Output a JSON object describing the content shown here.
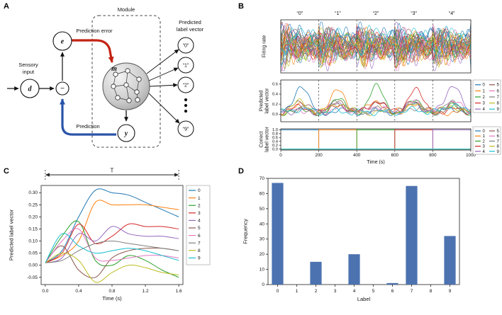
{
  "palette": [
    "#1f77b4",
    "#ff7f0e",
    "#2ca02c",
    "#d62728",
    "#9467bd",
    "#8c564b",
    "#e377c2",
    "#7f7f7f",
    "#bcbd22",
    "#17becf"
  ],
  "panel_labels": {
    "a": "A",
    "b": "B",
    "c": "C",
    "d": "D"
  },
  "panel_a": {
    "module_label": "Module",
    "prediction_error_label": "Prediction error",
    "prediction_label": "Prediction",
    "sensory_input_lines": [
      "Sensory",
      "input"
    ],
    "predicted_label_vector_lines": [
      "Predicted",
      "label vector"
    ],
    "nodes": {
      "error": "e",
      "input": "d",
      "reservoir": "m",
      "output": "y",
      "comparator": "−"
    },
    "output_circle_labels": [
      "“0”",
      "“1”",
      "“2”",
      "“9”"
    ],
    "colors": {
      "error_arrow": "#c42313",
      "prediction_arrow": "#2a54a8"
    }
  },
  "chart_data": [
    {
      "id": "b-firing-rate",
      "type": "line",
      "ylabel": "Firing rate",
      "xlim": [
        0,
        1000
      ],
      "segment_boundaries": [
        0,
        200,
        400,
        600,
        800,
        1000
      ],
      "segment_labels": [
        "“0”",
        "“1”",
        "“2”",
        "“3”",
        "“4”"
      ],
      "n_traces": 40,
      "description": "Dense overlapping multicolored firing-rate traces of reservoir neurons; activity restarts at each 200 s input segment boundary (dashed vertical lines)."
    },
    {
      "id": "b-predicted-label-vector",
      "type": "line",
      "ylabel": "Predicted label vector",
      "xlim": [
        0,
        1000
      ],
      "ylim": [
        -0.15,
        0.68
      ],
      "yticks": [
        0.0,
        0.2,
        0.4,
        0.6
      ],
      "legend": [
        "0",
        "1",
        "2",
        "3",
        "4",
        "5",
        "6",
        "7",
        "8",
        "9"
      ],
      "segment_peaks": [
        0.52,
        0.45,
        0.5,
        0.47,
        0.55
      ],
      "description": "Ten predicted-label traces; the trace matching the presented digit (0-4) rises toward ~0.5 within its 200 s segment, others fluctuate near 0."
    },
    {
      "id": "b-correct-label-vector",
      "type": "step",
      "ylabel": "Correct label vector",
      "xlabel": "Time (s)",
      "xlim": [
        0,
        1000
      ],
      "xticks": [
        0,
        200,
        400,
        600,
        800,
        1000
      ],
      "ylim": [
        -0.05,
        1.05
      ],
      "yticks": [
        0.0,
        0.2,
        0.4,
        0.6,
        0.8,
        1.0
      ],
      "legend": [
        "0",
        "1",
        "2",
        "3",
        "4",
        "5",
        "6",
        "7",
        "8",
        "9"
      ],
      "series": [
        {
          "name": "0",
          "active_interval": [
            0,
            200
          ]
        },
        {
          "name": "1",
          "active_interval": [
            200,
            400
          ]
        },
        {
          "name": "2",
          "active_interval": [
            400,
            600
          ]
        },
        {
          "name": "3",
          "active_interval": [
            600,
            800
          ]
        },
        {
          "name": "4",
          "active_interval": [
            800,
            1000
          ]
        },
        {
          "name": "5",
          "active_interval": null
        },
        {
          "name": "6",
          "active_interval": null
        },
        {
          "name": "7",
          "active_interval": null
        },
        {
          "name": "8",
          "active_interval": null
        },
        {
          "name": "9",
          "active_interval": null
        }
      ]
    },
    {
      "id": "c-predicted-label-vector",
      "type": "line",
      "ylabel": "Predicted label vector",
      "xlabel": "Time (s)",
      "annotation": "T",
      "xlim": [
        -0.05,
        1.65
      ],
      "ylim": [
        -0.08,
        0.33
      ],
      "xticks": [
        0.0,
        0.4,
        0.8,
        1.2,
        1.6
      ],
      "yticks": [
        -0.05,
        0.0,
        0.05,
        0.1,
        0.15,
        0.2,
        0.25,
        0.3
      ],
      "legend": [
        "0",
        "1",
        "2",
        "3",
        "4",
        "5",
        "6",
        "7",
        "8",
        "9"
      ],
      "x": [
        0,
        0.2,
        0.4,
        0.6,
        0.8,
        1.0,
        1.2,
        1.4,
        1.6
      ],
      "series": [
        {
          "name": "0",
          "values": [
            0.01,
            0.06,
            0.2,
            0.31,
            0.3,
            0.29,
            0.26,
            0.23,
            0.2
          ]
        },
        {
          "name": "1",
          "values": [
            0.01,
            0.04,
            0.1,
            0.26,
            0.25,
            0.25,
            0.25,
            0.24,
            0.23
          ]
        },
        {
          "name": "2",
          "values": [
            0.01,
            0.12,
            0.18,
            0.02,
            0.0,
            0.04,
            0.02,
            -0.02,
            -0.05
          ]
        },
        {
          "name": "3",
          "values": [
            0.01,
            0.05,
            0.17,
            0.09,
            0.12,
            0.17,
            0.16,
            0.16,
            0.15
          ]
        },
        {
          "name": "4",
          "values": [
            0.01,
            0.03,
            0.13,
            0.1,
            0.16,
            0.13,
            0.12,
            0.12,
            0.11
          ]
        },
        {
          "name": "5",
          "values": [
            0.01,
            0.08,
            -0.02,
            -0.05,
            0.03,
            0.06,
            0.07,
            0.07,
            0.06
          ]
        },
        {
          "name": "6",
          "values": [
            0.01,
            0.1,
            0.15,
            0.03,
            0.02,
            0.03,
            0.04,
            0.04,
            0.03
          ]
        },
        {
          "name": "7",
          "values": [
            0.01,
            0.02,
            0.06,
            0.09,
            0.1,
            0.09,
            0.08,
            0.07,
            0.06
          ]
        },
        {
          "name": "8",
          "values": [
            0.01,
            0.05,
            0.02,
            -0.07,
            -0.03,
            0.0,
            -0.01,
            -0.03,
            -0.04
          ]
        },
        {
          "name": "9",
          "values": [
            0.01,
            0.13,
            0.08,
            0.05,
            0.06,
            0.07,
            0.06,
            0.04,
            0.02
          ]
        }
      ]
    },
    {
      "id": "d-frequency",
      "type": "bar",
      "categories": [
        "0",
        "1",
        "2",
        "3",
        "4",
        "5",
        "6",
        "7",
        "8",
        "9"
      ],
      "values": [
        67,
        0,
        15,
        0,
        20,
        0,
        1,
        65,
        0,
        32
      ],
      "xlabel": "Label",
      "ylabel": "Frequency",
      "ylim": [
        0,
        70
      ],
      "yticks": [
        0,
        10,
        20,
        30,
        40,
        50,
        60,
        70
      ],
      "bar_color": "#4C72B0"
    }
  ]
}
